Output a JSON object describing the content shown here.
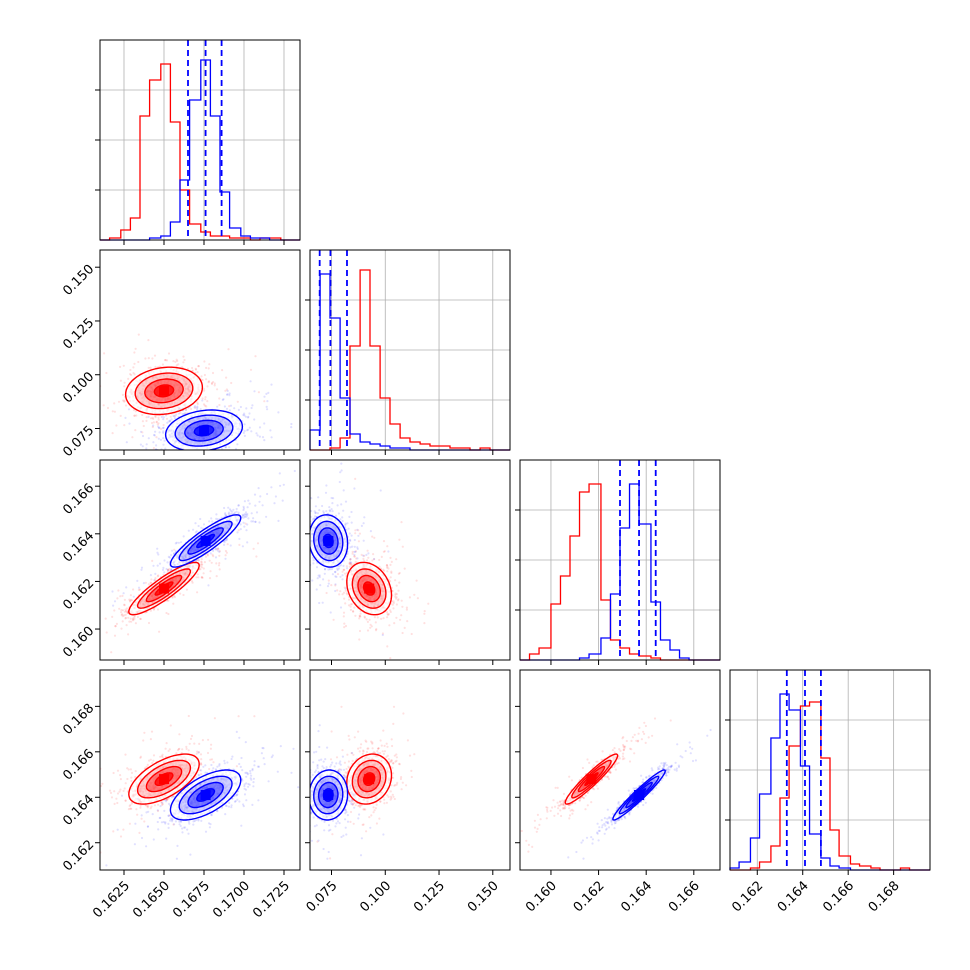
{
  "chart_data": {
    "type": "corner",
    "series": [
      {
        "name": "",
        "color": "#ff0000"
      },
      {
        "name": "",
        "color": "#0000ff"
      }
    ],
    "parameters": [
      {
        "range": [
          0.161,
          0.1735
        ],
        "ticks": [
          "0.1625",
          "0.1650",
          "0.1675",
          "0.1700",
          "0.1725"
        ],
        "tick_values": [
          0.1625,
          0.165,
          0.1675,
          0.17,
          0.1725
        ]
      },
      {
        "range": [
          0.065,
          0.158
        ],
        "ticks": [
          "0.075",
          "0.100",
          "0.125",
          "0.150"
        ],
        "tick_values": [
          0.075,
          0.1,
          0.125,
          0.15
        ]
      },
      {
        "range": [
          0.1587,
          0.1671
        ],
        "ticks": [
          "0.160",
          "0.162",
          "0.164",
          "0.166"
        ],
        "tick_values": [
          0.16,
          0.162,
          0.164,
          0.166
        ]
      },
      {
        "range": [
          0.1608,
          0.1696
        ],
        "ticks": [
          "0.162",
          "0.164",
          "0.166",
          "0.168"
        ],
        "tick_values": [
          0.162,
          0.164,
          0.166,
          0.168
        ]
      }
    ],
    "histograms": [
      {
        "bins": [
          0.161,
          0.1625
        ],
        "edges": [
          0.161,
          0.1616,
          0.1623,
          0.1629,
          0.1635,
          0.1641,
          0.1648,
          0.1654,
          0.166,
          0.1666,
          0.1673,
          0.1679,
          0.1685,
          0.1691,
          0.1698,
          0.1704,
          0.171,
          0.1716,
          0.1723,
          0.1729,
          0.1735
        ],
        "red": [
          0.0,
          0.01,
          0.05,
          0.11,
          0.62,
          0.8,
          0.88,
          0.59,
          0.25,
          0.08,
          0.04,
          0.02,
          0.02,
          0.01,
          0.01,
          0.0,
          0.01,
          0.01,
          0.0,
          0.0
        ],
        "blue": [
          0.0,
          0.0,
          0.0,
          0.0,
          0.0,
          0.01,
          0.02,
          0.09,
          0.3,
          0.7,
          0.9,
          0.62,
          0.24,
          0.06,
          0.02,
          0.01,
          0.01,
          0.0,
          0.0,
          0.0
        ],
        "quantiles": [
          0.1665,
          0.1676,
          0.1686
        ]
      },
      {
        "edges": [
          0.065,
          0.0697,
          0.0743,
          0.079,
          0.0836,
          0.0883,
          0.0929,
          0.0976,
          0.1022,
          0.1069,
          0.1115,
          0.1162,
          0.1208,
          0.1255,
          0.1301,
          0.1348,
          0.1394,
          0.1441,
          0.1487,
          0.1534,
          0.158
        ],
        "red": [
          0.0,
          0.0,
          0.01,
          0.06,
          0.52,
          0.9,
          0.52,
          0.26,
          0.13,
          0.06,
          0.04,
          0.03,
          0.02,
          0.02,
          0.01,
          0.01,
          0.0,
          0.01,
          0.0,
          0.0
        ],
        "blue": [
          0.1,
          0.88,
          0.66,
          0.26,
          0.08,
          0.04,
          0.03,
          0.02,
          0.01,
          0.01,
          0.0,
          0.0,
          0.0,
          0.0,
          0.0,
          0.0,
          0.0,
          0.0,
          0.0,
          0.0
        ],
        "quantiles": [
          0.0695,
          0.0745,
          0.0822
        ]
      },
      {
        "edges": [
          0.1587,
          0.1591,
          0.1595,
          0.16,
          0.1604,
          0.1608,
          0.1612,
          0.1616,
          0.1621,
          0.1625,
          0.1629,
          0.1633,
          0.1637,
          0.1642,
          0.1646,
          0.165,
          0.1654,
          0.1658,
          0.1663,
          0.1667,
          0.1671
        ],
        "red": [
          0.0,
          0.03,
          0.06,
          0.28,
          0.42,
          0.62,
          0.84,
          0.88,
          0.3,
          0.1,
          0.06,
          0.03,
          0.02,
          0.01,
          0.0,
          0.0,
          0.0,
          0.0,
          0.0,
          0.0
        ],
        "blue": [
          0.0,
          0.0,
          0.0,
          0.0,
          0.0,
          0.0,
          0.01,
          0.03,
          0.11,
          0.33,
          0.66,
          0.88,
          0.68,
          0.29,
          0.1,
          0.05,
          0.01,
          0.0,
          0.0,
          0.0
        ],
        "quantiles": [
          0.1629,
          0.1637,
          0.1644
        ]
      },
      {
        "edges": [
          0.1608,
          0.1612,
          0.1617,
          0.1621,
          0.1626,
          0.163,
          0.1634,
          0.1639,
          0.1643,
          0.1648,
          0.1652,
          0.1656,
          0.1661,
          0.1665,
          0.167,
          0.1674,
          0.1678,
          0.1683,
          0.1687,
          0.1692,
          0.1696
        ],
        "red": [
          0.0,
          0.0,
          0.01,
          0.04,
          0.12,
          0.36,
          0.62,
          0.82,
          0.84,
          0.56,
          0.2,
          0.07,
          0.03,
          0.02,
          0.01,
          0.0,
          0.0,
          0.01,
          0.0,
          0.0
        ],
        "blue": [
          0.01,
          0.04,
          0.16,
          0.38,
          0.66,
          0.88,
          0.8,
          0.52,
          0.18,
          0.06,
          0.02,
          0.01,
          0.0,
          0.0,
          0.0,
          0.0,
          0.0,
          0.0,
          0.0,
          0.0
        ],
        "quantiles": [
          0.1633,
          0.1641,
          0.1648
        ]
      }
    ],
    "contours_2d": [
      {
        "x": 0,
        "y": 1,
        "red": {
          "cx": 0.165,
          "cy": 0.0925,
          "sx": 0.0012,
          "sy": 0.0055,
          "rho": 0.15
        },
        "blue": {
          "cx": 0.1675,
          "cy": 0.074,
          "sx": 0.0012,
          "sy": 0.0048,
          "rho": 0.2
        }
      },
      {
        "x": 0,
        "y": 2,
        "red": {
          "cx": 0.165,
          "cy": 0.1617,
          "sx": 0.0011,
          "sy": 0.00055,
          "rho": 0.88
        },
        "blue": {
          "cx": 0.1676,
          "cy": 0.1637,
          "sx": 0.0011,
          "sy": 0.00055,
          "rho": 0.88
        }
      },
      {
        "x": 1,
        "y": 2,
        "red": {
          "cx": 0.0925,
          "cy": 0.1617,
          "sx": 0.0052,
          "sy": 0.00055,
          "rho": -0.25
        },
        "blue": {
          "cx": 0.0735,
          "cy": 0.1637,
          "sx": 0.0045,
          "sy": 0.00055,
          "rho": -0.1
        }
      },
      {
        "x": 0,
        "y": 3,
        "red": {
          "cx": 0.165,
          "cy": 0.1648,
          "sx": 0.0011,
          "sy": 0.00055,
          "rho": 0.6
        },
        "blue": {
          "cx": 0.1676,
          "cy": 0.1641,
          "sx": 0.0011,
          "sy": 0.00055,
          "rho": 0.6
        }
      },
      {
        "x": 1,
        "y": 3,
        "red": {
          "cx": 0.0925,
          "cy": 0.1648,
          "sx": 0.0052,
          "sy": 0.00055,
          "rho": 0.15
        },
        "blue": {
          "cx": 0.0735,
          "cy": 0.1641,
          "sx": 0.0045,
          "sy": 0.00055,
          "rho": 0.05
        }
      },
      {
        "x": 2,
        "y": 3,
        "red": {
          "cx": 0.1617,
          "cy": 0.1648,
          "sx": 0.00055,
          "sy": 0.00055,
          "rho": 0.94
        },
        "blue": {
          "cx": 0.1637,
          "cy": 0.1641,
          "sx": 0.00055,
          "sy": 0.00055,
          "rho": 0.96
        }
      }
    ],
    "grid": true,
    "legend": "none"
  }
}
